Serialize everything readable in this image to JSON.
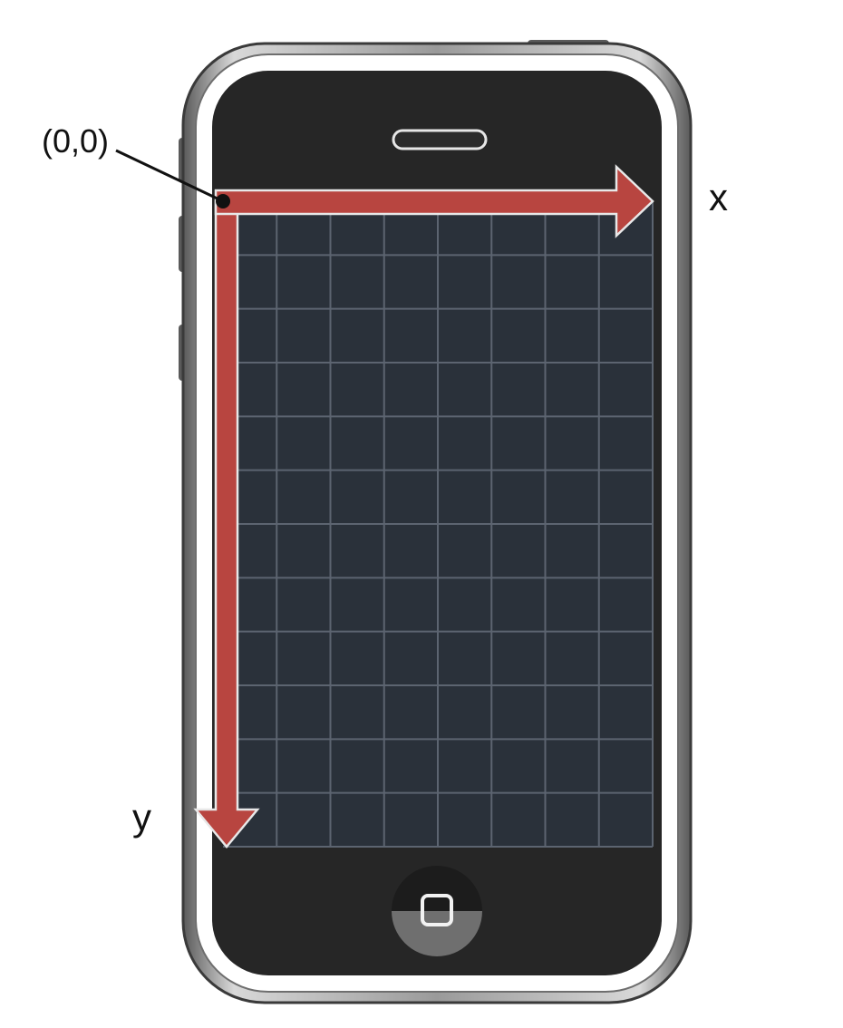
{
  "origin_label": "(0,0)",
  "x_axis_label": "x",
  "y_axis_label": "y",
  "grid": {
    "columns": 8,
    "rows": 12
  },
  "colors": {
    "arrow": "#b84540",
    "screen": "#2a313a",
    "grid_line": "#5c6470",
    "phone_body": "#2b2b2b",
    "bezel": "#8a8a8a"
  },
  "icons": {
    "home_button": "rounded-square"
  }
}
